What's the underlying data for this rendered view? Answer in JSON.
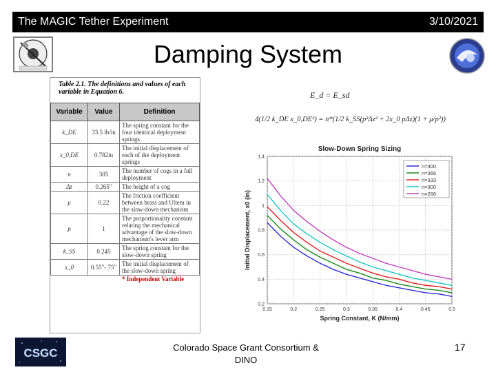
{
  "header": {
    "title": "The MAGIC Tether Experiment",
    "date": "3/10/2021"
  },
  "slide": {
    "title": "Damping System"
  },
  "table": {
    "caption": "Table 2.1.  The definitions and values of each variable in Equation 6.",
    "headers": [
      "Variable",
      "Value",
      "Definition"
    ],
    "rows": [
      {
        "variable": "k_DE",
        "value": "33.5 lb/in",
        "definition": "The spring constant for the four identical deployment springs"
      },
      {
        "variable": "x_0,DE",
        "value": "0.782in",
        "definition": "The initial displacement of each of the deployment springs"
      },
      {
        "variable": "n",
        "value": "305",
        "definition": "The number of cogs in a full deployment"
      },
      {
        "variable": "Δz",
        "value": "0.265\"",
        "definition": "The height of a cog"
      },
      {
        "variable": "μ",
        "value": "0.22",
        "definition": "The friction coefficient between brass and Ultem in the slow-down mechanism"
      },
      {
        "variable": "p",
        "value": "1",
        "definition": "The proportionality constant relating the mechanical advantage of the slow-down mechanism's lever arm"
      },
      {
        "variable": "k_SS",
        "value": "0.245",
        "definition": "The spring constant for the slow-down spring"
      },
      {
        "variable": "x_0",
        "value": "0.55\"-.75\"",
        "definition": "The initial displacement of the slow-down spring"
      }
    ],
    "note": "* Independent Variable"
  },
  "equation": {
    "line1": "E_d = E_sd",
    "line2": "4(1/2 k_DE x_0,DE²) = n*(1/2 k_SS(p²Δz² + 2x_0 pΔz)(1 + μ/p²))"
  },
  "chart_data": {
    "type": "line",
    "title": "Slow-Down Spring Sizing",
    "xlabel": "Spring Constant, K (N/mm)",
    "ylabel": "Initial Displacement, x0 (in)",
    "xlim": [
      0.15,
      0.5
    ],
    "ylim": [
      0.2,
      1.4
    ],
    "xticks": [
      "0.15",
      "0.2",
      "0.25",
      "0.3",
      "0.35",
      "0.4",
      "0.45",
      "0.5"
    ],
    "yticks": [
      "0.2",
      "0.4",
      "0.6",
      "0.8",
      "1",
      "1.2",
      "1.4"
    ],
    "grid": true,
    "legend_position": "top-right",
    "x": [
      0.15,
      0.175,
      0.2,
      0.225,
      0.25,
      0.275,
      0.3,
      0.325,
      0.35,
      0.375,
      0.4,
      0.425,
      0.45,
      0.475,
      0.5
    ],
    "series": [
      {
        "name": "n=400",
        "color": "#2b2bd6",
        "values": [
          0.86,
          0.75,
          0.66,
          0.59,
          0.53,
          0.48,
          0.44,
          0.41,
          0.38,
          0.35,
          0.33,
          0.31,
          0.29,
          0.28,
          0.26
        ]
      },
      {
        "name": "n=366",
        "color": "#1a8a1a",
        "values": [
          0.92,
          0.81,
          0.72,
          0.64,
          0.58,
          0.53,
          0.48,
          0.45,
          0.41,
          0.39,
          0.36,
          0.34,
          0.32,
          0.31,
          0.29
        ]
      },
      {
        "name": "n=333",
        "color": "#e02020",
        "values": [
          0.99,
          0.88,
          0.78,
          0.7,
          0.63,
          0.58,
          0.53,
          0.49,
          0.45,
          0.42,
          0.4,
          0.37,
          0.35,
          0.34,
          0.32
        ]
      },
      {
        "name": "n=300",
        "color": "#1cc4c4",
        "values": [
          1.09,
          0.96,
          0.85,
          0.77,
          0.7,
          0.64,
          0.59,
          0.54,
          0.5,
          0.47,
          0.44,
          0.41,
          0.39,
          0.37,
          0.35
        ]
      },
      {
        "name": "n=266",
        "color": "#c040c0",
        "values": [
          1.22,
          1.08,
          0.96,
          0.87,
          0.79,
          0.72,
          0.66,
          0.61,
          0.57,
          0.53,
          0.5,
          0.47,
          0.44,
          0.42,
          0.4
        ]
      }
    ]
  },
  "footer": {
    "logo_text": "CSGC",
    "center_line1": "Colorado Space Grant Consortium  &",
    "center_line2": "DINO",
    "page": "17"
  }
}
